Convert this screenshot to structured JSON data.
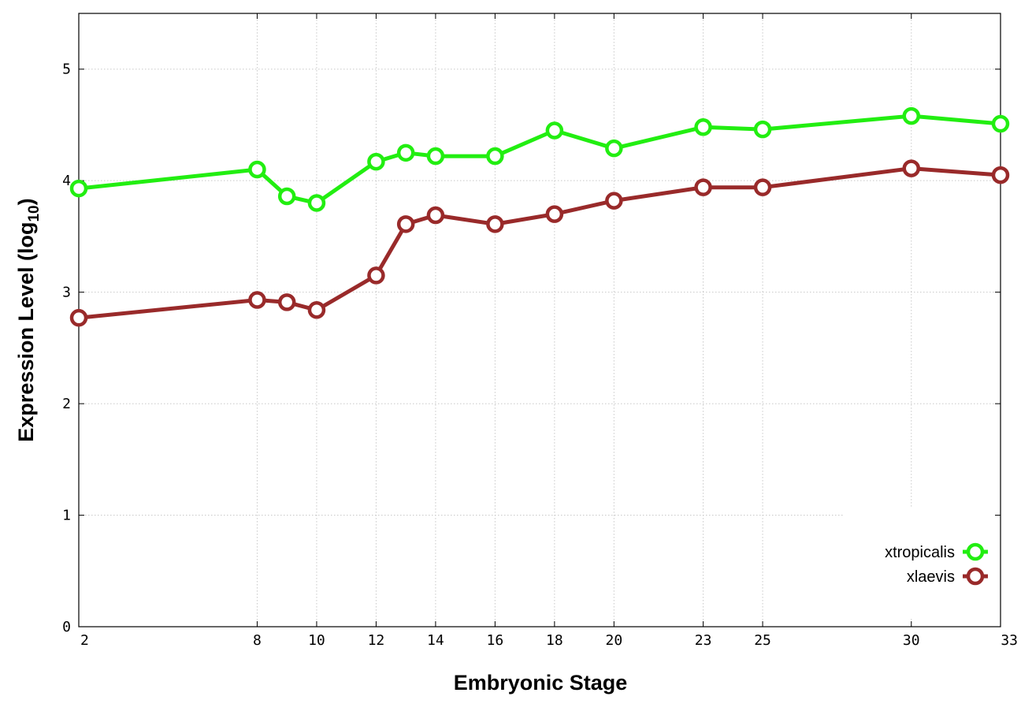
{
  "chart_data": {
    "type": "line",
    "xlabel": "Embryonic Stage",
    "ylabel_main": "Expression Level (log",
    "ylabel_sub": "10",
    "ylabel_close": ")",
    "x": [
      2,
      8,
      9,
      10,
      12,
      13,
      14,
      16,
      18,
      20,
      23,
      25,
      30,
      33
    ],
    "x_tick_labels": [
      "2",
      "8",
      "10",
      "12",
      "14",
      "16",
      "18",
      "20",
      "23",
      "25",
      "30",
      "33"
    ],
    "x_tick_values": [
      2,
      8,
      10,
      12,
      14,
      16,
      18,
      20,
      23,
      25,
      30,
      33
    ],
    "xlim": [
      2,
      33
    ],
    "ylim": [
      0,
      5.5
    ],
    "y_tick_values": [
      0,
      1,
      2,
      3,
      4,
      5
    ],
    "y_tick_labels": [
      "0",
      "1",
      "2",
      "3",
      "4",
      "5"
    ],
    "grid": true,
    "legend_position": "bottom-right",
    "series": [
      {
        "name": "xtropicalis",
        "color": "#22ee11",
        "values": [
          3.93,
          4.1,
          3.86,
          3.8,
          4.17,
          4.25,
          4.22,
          4.22,
          4.45,
          4.29,
          4.48,
          4.46,
          4.58,
          4.51
        ]
      },
      {
        "name": "xlaevis",
        "color": "#992a2a",
        "values": [
          2.77,
          2.93,
          2.91,
          2.84,
          3.15,
          3.61,
          3.69,
          3.61,
          3.7,
          3.82,
          3.94,
          3.94,
          4.11,
          4.05
        ]
      }
    ]
  }
}
